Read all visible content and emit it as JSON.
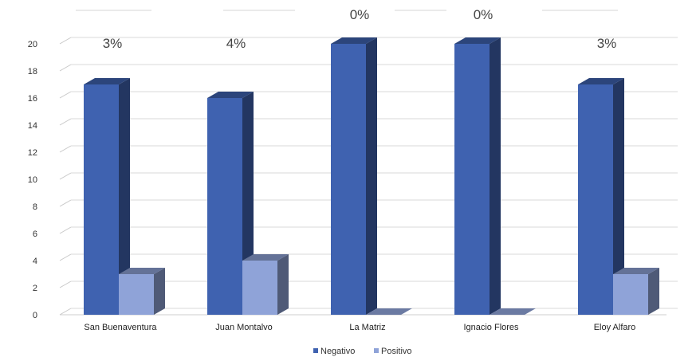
{
  "chart_data": {
    "type": "bar",
    "categories": [
      "San Buenaventura",
      "Juan Montalvo",
      "La Matriz",
      "Ignacio Flores",
      "Eloy Alfaro"
    ],
    "series": [
      {
        "name": "Negativo",
        "values": [
          17,
          16,
          20,
          20,
          17
        ],
        "color": "#3f62b0"
      },
      {
        "name": "Positivo",
        "values": [
          3,
          4,
          0,
          0,
          3
        ],
        "color": "#8fa3d8"
      }
    ],
    "data_labels": [
      "3%",
      "4%",
      "0%",
      "0%",
      "3%"
    ],
    "yticks": [
      0,
      2,
      4,
      6,
      8,
      10,
      12,
      14,
      16,
      18,
      20
    ],
    "ylim": [
      0,
      20
    ],
    "title": "",
    "xlabel": "",
    "ylabel": "",
    "grid": true,
    "legend_position": "bottom",
    "style": "3d-clustered-column"
  }
}
